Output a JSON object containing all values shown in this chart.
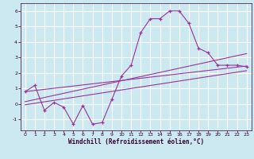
{
  "bg_color": "#cce8f0",
  "grid_color": "#ffffff",
  "line_color": "#993399",
  "xlabel": "Windchill (Refroidissement éolien,°C)",
  "xlim": [
    -0.5,
    23.5
  ],
  "ylim": [
    -1.7,
    6.5
  ],
  "xticks": [
    0,
    1,
    2,
    3,
    4,
    5,
    6,
    7,
    8,
    9,
    10,
    11,
    12,
    13,
    14,
    15,
    16,
    17,
    18,
    19,
    20,
    21,
    22,
    23
  ],
  "yticks": [
    -1,
    0,
    1,
    2,
    3,
    4,
    5,
    6
  ],
  "main_data_x": [
    0,
    1,
    2,
    3,
    4,
    5,
    6,
    7,
    8,
    9,
    10,
    11,
    12,
    13,
    14,
    15,
    16,
    17,
    18,
    19,
    20,
    21,
    22,
    23
  ],
  "main_data_y": [
    0.8,
    1.2,
    -0.4,
    0.1,
    -0.2,
    -1.3,
    -0.1,
    -1.3,
    -1.2,
    0.3,
    1.8,
    2.5,
    4.6,
    5.5,
    5.5,
    6.0,
    6.0,
    5.2,
    3.6,
    3.3,
    2.5,
    2.5,
    2.5,
    2.4
  ],
  "trend1_x": [
    0,
    23
  ],
  "trend1_y": [
    0.8,
    2.45
  ],
  "trend2_x": [
    0,
    23
  ],
  "trend2_y": [
    0.15,
    3.25
  ],
  "trend3_x": [
    0,
    23
  ],
  "trend3_y": [
    -0.05,
    2.15
  ]
}
